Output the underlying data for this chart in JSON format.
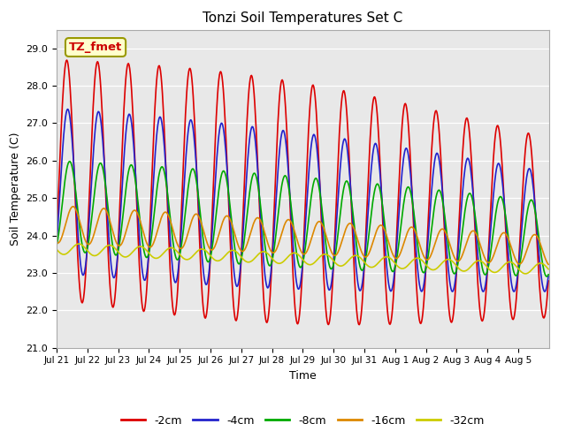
{
  "title": "Tonzi Soil Temperatures Set C",
  "xlabel": "Time",
  "ylabel": "Soil Temperature (C)",
  "ylim": [
    21.0,
    29.5
  ],
  "yticks": [
    21.0,
    22.0,
    23.0,
    24.0,
    25.0,
    26.0,
    27.0,
    28.0,
    29.0
  ],
  "bg_color": "#e8e8e8",
  "fig_color": "#ffffff",
  "annotation_text": "TZ_fmet",
  "annotation_color": "#cc0000",
  "annotation_bg": "#ffffcc",
  "annotation_border": "#999900",
  "series_colors": {
    "-2cm": "#dd0000",
    "-4cm": "#2222cc",
    "-8cm": "#00aa00",
    "-16cm": "#dd8800",
    "-32cm": "#cccc00"
  },
  "xtick_labels": [
    "Jul 21",
    "Jul 22",
    "Jul 23",
    "Jul 24",
    "Jul 25",
    "Jul 26",
    "Jul 27",
    "Jul 28",
    "Jul 29",
    "Jul 30",
    "Jul 31",
    "Aug 1",
    "Aug 2",
    "Aug 3",
    "Aug 4",
    "Aug 5"
  ],
  "n_days": 16,
  "pts_per_day": 48
}
